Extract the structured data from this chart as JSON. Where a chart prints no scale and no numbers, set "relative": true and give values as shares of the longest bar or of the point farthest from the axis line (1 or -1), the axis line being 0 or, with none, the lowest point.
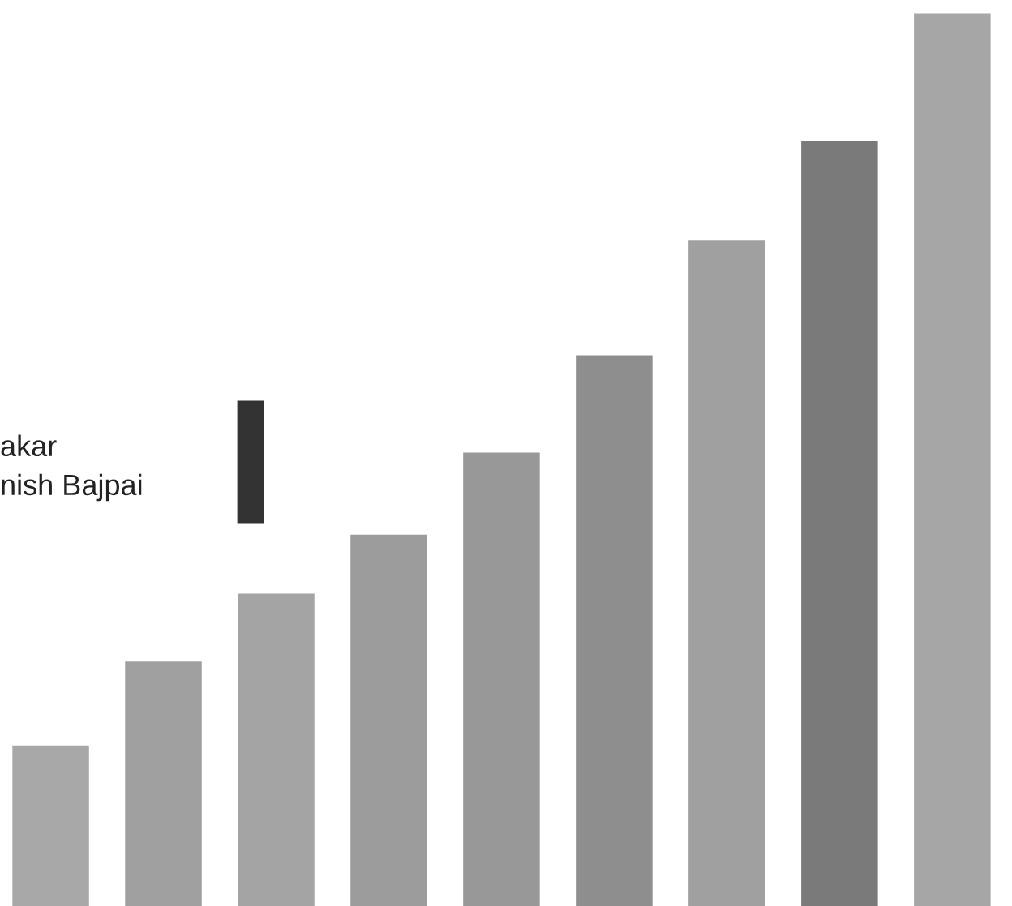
{
  "chart_data": {
    "type": "bar",
    "relative": true,
    "categories": [
      null,
      null,
      null,
      null,
      null,
      null,
      null,
      null,
      null
    ],
    "values": [
      0.18,
      0.274,
      0.35,
      0.416,
      0.508,
      0.617,
      0.746,
      0.857,
      1
    ],
    "colors": [
      "#a8a8a8",
      "#a0a0a0",
      "#a4a4a4",
      "#9c9c9c",
      "#989898",
      "#8e8e8e",
      "#a0a0a0",
      "#7a7a7a",
      "#a6a6a6"
    ],
    "annotations": [
      "akar",
      "nish Bajpai"
    ],
    "legend": false
  }
}
